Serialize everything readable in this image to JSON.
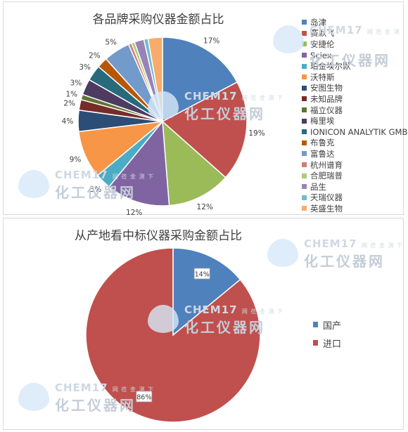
{
  "charts": [
    {
      "title": "各品牌采购仪器金额占比",
      "legend": [
        {
          "label": "岛津",
          "color": "#4f81bd"
        },
        {
          "label": "赛默飞",
          "color": "#c0504d"
        },
        {
          "label": "安捷伦",
          "color": "#9bbb59"
        },
        {
          "label": "Sciex",
          "color": "#8064a2"
        },
        {
          "label": "珀金埃尔默",
          "color": "#4bacc6"
        },
        {
          "label": "沃特斯",
          "color": "#f79646"
        },
        {
          "label": "安图生物",
          "color": "#2c4d75"
        },
        {
          "label": "未知品牌",
          "color": "#772c2a"
        },
        {
          "label": "福立仪器",
          "color": "#5f7530"
        },
        {
          "label": "梅里埃",
          "color": "#4d3b62"
        },
        {
          "label": "IONICON ANALYTIK GMBH",
          "color": "#276a7c"
        },
        {
          "label": "布鲁克",
          "color": "#b65708"
        },
        {
          "label": "富鲁达",
          "color": "#729aca"
        },
        {
          "label": "杭州谱育",
          "color": "#d07c7a"
        },
        {
          "label": "合肥瑞普",
          "color": "#afc97a"
        },
        {
          "label": "品生",
          "color": "#9983b5"
        },
        {
          "label": "天瑞仪器",
          "color": "#6fbdd1"
        },
        {
          "label": "英盛生物",
          "color": "#f9ab6b"
        }
      ]
    },
    {
      "title": "从产地看中标仪器采购金额占比",
      "legend": [
        {
          "label": "国产",
          "color": "#4f81bd"
        },
        {
          "label": "进口",
          "color": "#c0504d"
        }
      ]
    }
  ],
  "chart_data": [
    {
      "type": "pie",
      "title": "各品牌采购仪器金额占比",
      "categories": [
        "岛津",
        "赛默飞",
        "安捷伦",
        "Sciex",
        "珀金埃尔默",
        "沃特斯",
        "安图生物",
        "未知品牌",
        "福立仪器",
        "梅里埃",
        "IONICON ANALYTIK GMBH",
        "布鲁克",
        "富鲁达",
        "杭州谱育",
        "合肥瑞普",
        "品生",
        "天瑞仪器",
        "英盛生物"
      ],
      "values": [
        17,
        19,
        12,
        12,
        3,
        9,
        4,
        2,
        1,
        3,
        3,
        2,
        5,
        0.6,
        0.6,
        1.8,
        0.8,
        2.7
      ],
      "labels": [
        "17%",
        "19%",
        "12%",
        "12%",
        "3%",
        "9%",
        "4%",
        "2%",
        "1%",
        "3%",
        "3%",
        "2%",
        "5%",
        "",
        "",
        "",
        "",
        ""
      ],
      "legend_position": "right"
    },
    {
      "type": "pie",
      "title": "从产地看中标仪器采购金额占比",
      "categories": [
        "国产",
        "进口"
      ],
      "values": [
        14,
        86
      ],
      "labels": [
        "14%",
        "86%"
      ],
      "legend_position": "right"
    }
  ],
  "watermark": {
    "brand": "CHEM17",
    "tagline": "网 莅 金 测 下",
    "name": "化工仪器网"
  }
}
